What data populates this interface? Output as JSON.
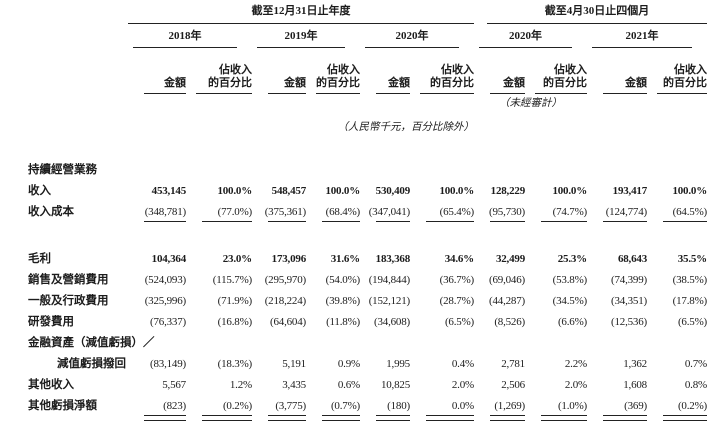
{
  "table": {
    "period_groups": [
      {
        "title": "截至12月31日止年度",
        "years": [
          "2018年",
          "2019年",
          "2020年"
        ]
      },
      {
        "title": "截至4月30日止四個月",
        "years": [
          "2020年",
          "2021年"
        ]
      }
    ],
    "column_headers": {
      "amount": "金額",
      "pct_line1": "佔收入",
      "pct_line2": "的百分比"
    },
    "notes": {
      "unaudited": "（未經審計）",
      "currency": "（人民幣千元，百分比除外）"
    },
    "rows": [
      {
        "type": "section",
        "label": "持續經營業務"
      },
      {
        "type": "data",
        "label": "收入",
        "bold": true,
        "values": [
          "453,145",
          "100.0%",
          "548,457",
          "100.0%",
          "530,409",
          "100.0%",
          "128,229",
          "100.0%",
          "193,417",
          "100.0%"
        ]
      },
      {
        "type": "data",
        "label": "收入成本",
        "underline": true,
        "values": [
          "(348,781)",
          "(77.0%)",
          "(375,361)",
          "(68.4%)",
          "(347,041)",
          "(65.4%)",
          "(95,730)",
          "(74.7%)",
          "(124,774)",
          "(64.5%)"
        ]
      },
      {
        "type": "spacer"
      },
      {
        "type": "data",
        "label": "毛利",
        "bold": true,
        "values": [
          "104,364",
          "23.0%",
          "173,096",
          "31.6%",
          "183,368",
          "34.6%",
          "32,499",
          "25.3%",
          "68,643",
          "35.5%"
        ]
      },
      {
        "type": "data",
        "label": "銷售及營銷費用",
        "values": [
          "(524,093)",
          "(115.7%)",
          "(295,970)",
          "(54.0%)",
          "(194,844)",
          "(36.7%)",
          "(69,046)",
          "(53.8%)",
          "(74,399)",
          "(38.5%)"
        ]
      },
      {
        "type": "data",
        "label": "一般及行政費用",
        "values": [
          "(325,996)",
          "(71.9%)",
          "(218,224)",
          "(39.8%)",
          "(152,121)",
          "(28.7%)",
          "(44,287)",
          "(34.5%)",
          "(34,351)",
          "(17.8%)"
        ]
      },
      {
        "type": "data",
        "label": "研發費用",
        "values": [
          "(76,337)",
          "(16.8%)",
          "(64,604)",
          "(11.8%)",
          "(34,608)",
          "(6.5%)",
          "(8,526)",
          "(6.6%)",
          "(12,536)",
          "(6.5%)"
        ]
      },
      {
        "type": "label",
        "label": "金融資產（減值虧損）／"
      },
      {
        "type": "data",
        "label": "減值虧損撥回",
        "indent": true,
        "values": [
          "(83,149)",
          "(18.3%)",
          "5,191",
          "0.9%",
          "1,995",
          "0.4%",
          "2,781",
          "2.2%",
          "1,362",
          "0.7%"
        ]
      },
      {
        "type": "data",
        "label": "其他收入",
        "values": [
          "5,567",
          "1.2%",
          "3,435",
          "0.6%",
          "10,825",
          "2.0%",
          "2,506",
          "2.0%",
          "1,608",
          "0.8%"
        ]
      },
      {
        "type": "data",
        "label": "其他虧損淨額",
        "underline": true,
        "values": [
          "(823)",
          "(0.2%)",
          "(3,775)",
          "(0.7%)",
          "(180)",
          "0.0%",
          "(1,269)",
          "(1.0%)",
          "(369)",
          "(0.2%)"
        ]
      },
      {
        "type": "rule"
      }
    ]
  }
}
